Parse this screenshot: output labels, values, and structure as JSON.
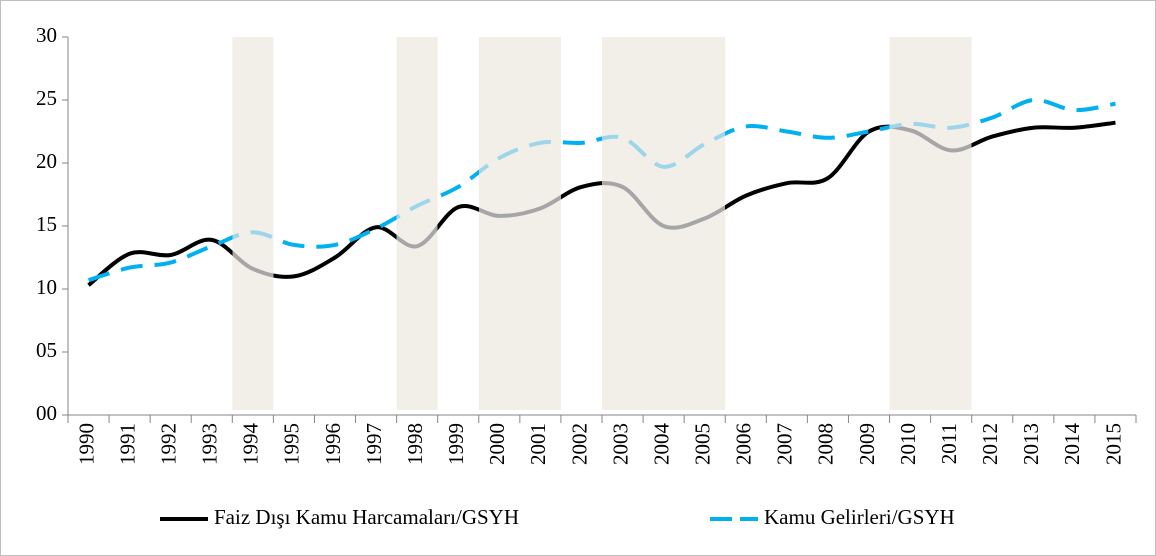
{
  "chart_data": {
    "type": "line",
    "categories": [
      "1990",
      "1991",
      "1992",
      "1993",
      "1994",
      "1995",
      "1996",
      "1997",
      "1998",
      "1999",
      "2000",
      "2001",
      "2002",
      "2003",
      "2004",
      "2005",
      "2006",
      "2007",
      "2008",
      "2009",
      "2010",
      "2011",
      "2012",
      "2013",
      "2014",
      "2015"
    ],
    "series": [
      {
        "name": "Faiz Dışı Kamu Harcamaları/GSYH",
        "color": "#000000",
        "shaded_color": "#a6a6a6",
        "dashed": false,
        "values": [
          10.3,
          12.8,
          12.7,
          13.9,
          11.6,
          11.0,
          12.5,
          14.9,
          13.4,
          16.5,
          15.8,
          16.4,
          18.1,
          18.1,
          15.0,
          15.6,
          17.4,
          18.4,
          18.8,
          22.5,
          22.6,
          21.0,
          22.1,
          22.8,
          22.8,
          23.2
        ]
      },
      {
        "name": "Kamu Gelirleri/GSYH",
        "color": "#00b0f0",
        "shaded_color": "#9dd6ea",
        "dashed": true,
        "values": [
          10.7,
          11.7,
          12.1,
          13.4,
          14.5,
          13.5,
          13.5,
          14.8,
          16.6,
          18.1,
          20.4,
          21.6,
          21.6,
          22.0,
          19.7,
          21.5,
          22.9,
          22.5,
          22.0,
          22.5,
          23.1,
          22.8,
          23.6,
          25.0,
          24.2,
          24.7
        ]
      }
    ],
    "shaded_periods": [
      [
        "1994",
        "1994"
      ],
      [
        "1998",
        "1998"
      ],
      [
        "2000",
        "2001"
      ],
      [
        "2003",
        "2005"
      ],
      [
        "2010",
        "2011"
      ]
    ],
    "shaded_fill": "#f2efe9",
    "ylim": [
      0,
      30
    ],
    "yticks": [
      {
        "value": 0,
        "label": "00"
      },
      {
        "value": 5,
        "label": "05"
      },
      10,
      15,
      20,
      25,
      30
    ],
    "legend": "bottom"
  }
}
